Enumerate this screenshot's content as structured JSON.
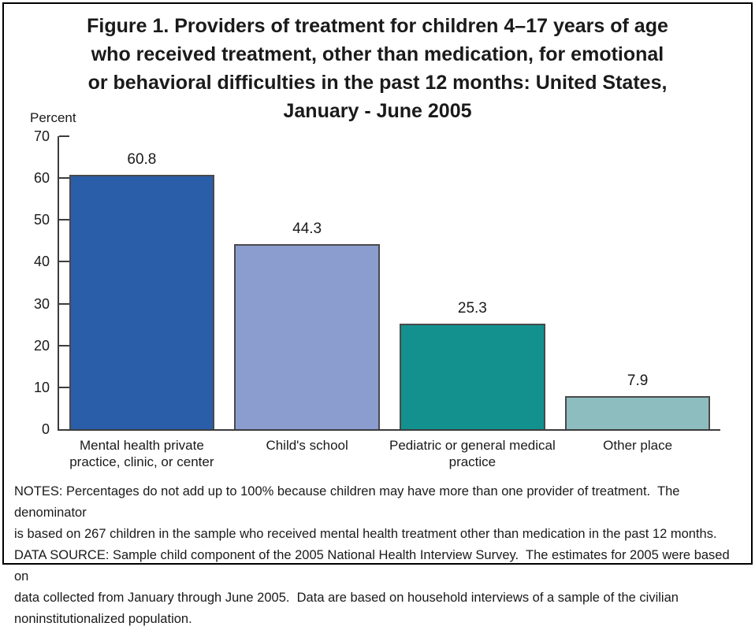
{
  "chart_data": {
    "type": "bar",
    "title": "Figure 1. Providers of treatment for children 4–17 years of age who received treatment, other than medication, for emotional or behavioral difficulties in the past 12 months: United States, January - June 2005",
    "title_lines": [
      "Figure 1. Providers of treatment for children 4–17 years of age",
      "who received treatment, other than medication, for emotional",
      "or behavioral difficulties in the past 12 months: United States,",
      "January - June 2005"
    ],
    "ylabel": "Percent",
    "xlabel": "",
    "categories": [
      "Mental health private practice, clinic, or center",
      "Child's school",
      "Pediatric or general medical practice",
      "Other place"
    ],
    "values": [
      60.8,
      44.3,
      25.3,
      7.9
    ],
    "value_labels": [
      "60.8",
      "44.3",
      "25.3",
      "7.9"
    ],
    "bar_colors": [
      "#2A5EA8",
      "#8B9CCE",
      "#12918F",
      "#8DBDBE"
    ],
    "bar_border_color": "#4a4a4a",
    "axis_color": "#3c3c3c",
    "ylim": [
      0,
      70
    ],
    "ytick_step": 10,
    "yticks": [
      0,
      10,
      20,
      30,
      40,
      50,
      60,
      70
    ],
    "grid": false,
    "legend_position": "none"
  },
  "notes": {
    "lines": [
      "NOTES: Percentages do not add up to 100% because children may have more than one provider of treatment.  The denominator",
      "is based on 267 children in the sample who received mental health treatment other than medication in the past 12 months.",
      "DATA SOURCE: Sample child component of the 2005 National Health Interview Survey.  The estimates for 2005 were based on",
      "data collected from January through June 2005.  Data are based on household interviews of a sample of the civilian",
      "noninstitutionalized population."
    ]
  }
}
